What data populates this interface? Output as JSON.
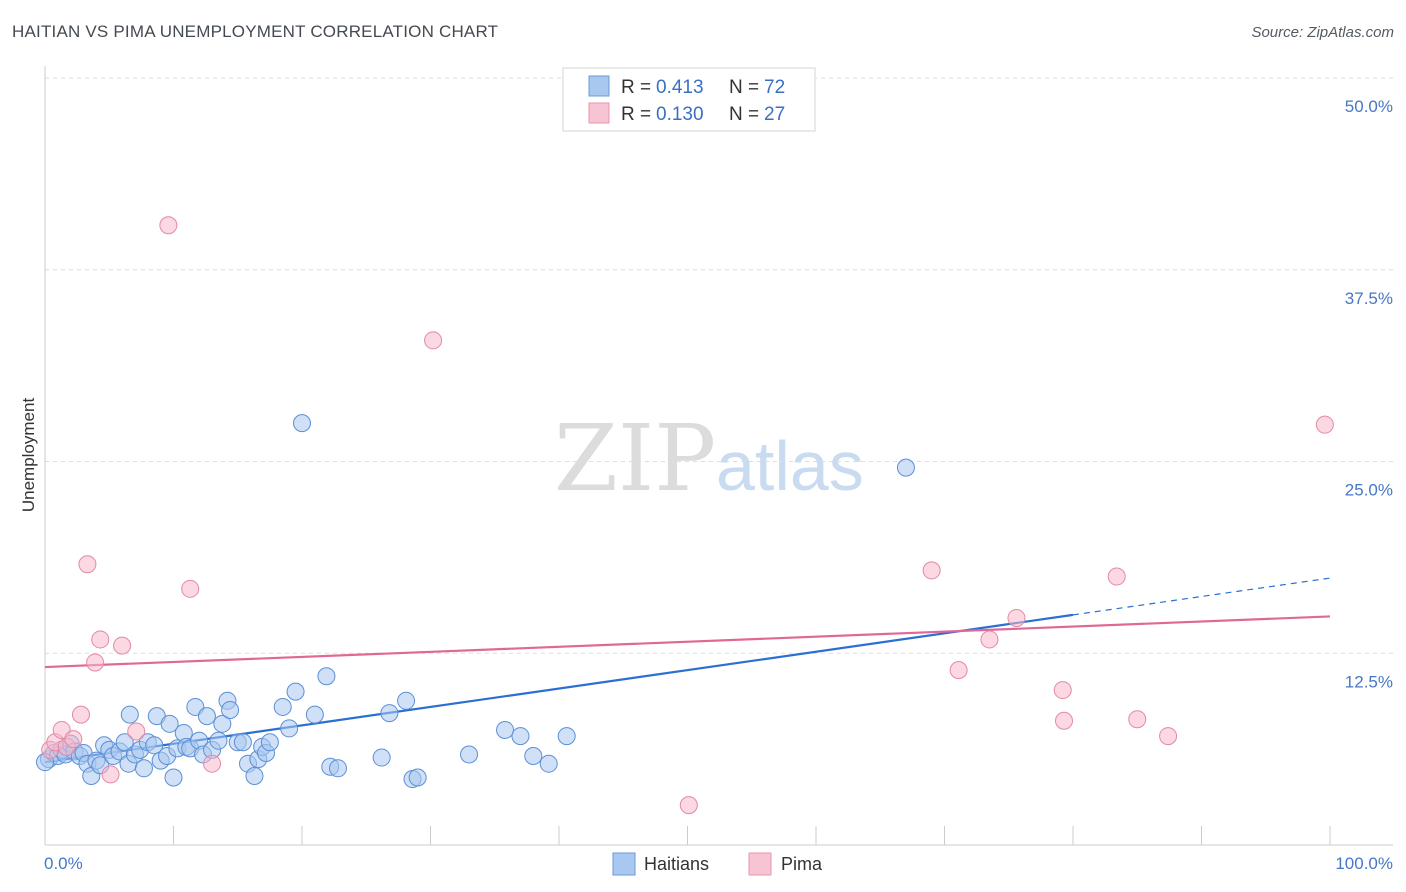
{
  "title": "HAITIAN VS PIMA UNEMPLOYMENT CORRELATION CHART",
  "source": "Source: ZipAtlas.com",
  "watermark": {
    "zip": "ZIP",
    "atlas": "atlas"
  },
  "legend": {
    "rows": [
      {
        "r_label": "R = ",
        "r_value": "0.413",
        "n_label": "N = ",
        "n_value": "72",
        "color": "#a9c8f0"
      },
      {
        "r_label": "R = ",
        "r_value": "0.130",
        "n_label": "N = ",
        "n_value": "27",
        "color": "#f7b8cb"
      }
    ]
  },
  "chart_data": {
    "type": "scatter",
    "title": "HAITIAN VS PIMA UNEMPLOYMENT CORRELATION CHART",
    "xlabel": "",
    "ylabel": "Unemployment",
    "xlim": [
      0,
      100
    ],
    "ylim": [
      0,
      50
    ],
    "x_tick_labels": [
      "0.0%",
      "100.0%"
    ],
    "y_ticks": [
      12.5,
      25.0,
      37.5,
      50.0
    ],
    "y_tick_labels": [
      "12.5%",
      "25.0%",
      "37.5%",
      "50.0%"
    ],
    "series": [
      {
        "name": "Haitians",
        "color": "#a9c8f0",
        "stroke": "#5b8fd6",
        "trend_color": "#2a6fd1",
        "trend": {
          "x0": 0,
          "y0": 5.4,
          "x1": 80,
          "y1": 15.0,
          "dash_to_x": 100,
          "dash_to_y": 17.4
        },
        "points": [
          [
            0.3,
            5.6
          ],
          [
            0.7,
            6.0
          ],
          [
            1.0,
            5.8
          ],
          [
            1.3,
            6.2
          ],
          [
            1.6,
            5.9
          ],
          [
            2.0,
            6.6
          ],
          [
            2.3,
            6.1
          ],
          [
            2.7,
            5.8
          ],
          [
            3.0,
            6.0
          ],
          [
            3.3,
            5.3
          ],
          [
            3.6,
            4.5
          ],
          [
            4.0,
            5.5
          ],
          [
            4.3,
            5.2
          ],
          [
            4.6,
            6.5
          ],
          [
            5.0,
            6.2
          ],
          [
            5.3,
            5.8
          ],
          [
            5.8,
            6.1
          ],
          [
            6.2,
            6.7
          ],
          [
            6.5,
            5.3
          ],
          [
            6.6,
            8.5
          ],
          [
            7.0,
            5.9
          ],
          [
            7.4,
            6.2
          ],
          [
            7.7,
            5.0
          ],
          [
            8.0,
            6.7
          ],
          [
            8.5,
            6.5
          ],
          [
            8.7,
            8.4
          ],
          [
            9.0,
            5.5
          ],
          [
            9.5,
            5.8
          ],
          [
            9.7,
            7.9
          ],
          [
            10.0,
            4.4
          ],
          [
            10.3,
            6.3
          ],
          [
            10.8,
            7.3
          ],
          [
            11.0,
            6.4
          ],
          [
            11.3,
            6.3
          ],
          [
            11.7,
            9.0
          ],
          [
            12.0,
            6.8
          ],
          [
            12.3,
            5.9
          ],
          [
            12.6,
            8.4
          ],
          [
            13.0,
            6.2
          ],
          [
            13.5,
            6.8
          ],
          [
            13.8,
            7.9
          ],
          [
            14.2,
            9.4
          ],
          [
            14.4,
            8.8
          ],
          [
            15.0,
            6.7
          ],
          [
            15.4,
            6.7
          ],
          [
            15.8,
            5.3
          ],
          [
            16.3,
            4.5
          ],
          [
            16.6,
            5.6
          ],
          [
            16.9,
            6.4
          ],
          [
            17.2,
            6.0
          ],
          [
            17.5,
            6.7
          ],
          [
            18.5,
            9.0
          ],
          [
            19.0,
            7.6
          ],
          [
            19.5,
            10.0
          ],
          [
            20.0,
            27.5
          ],
          [
            21.0,
            8.5
          ],
          [
            21.9,
            11.0
          ],
          [
            22.2,
            5.1
          ],
          [
            22.8,
            5.0
          ],
          [
            26.2,
            5.7
          ],
          [
            26.8,
            8.6
          ],
          [
            28.1,
            9.4
          ],
          [
            28.6,
            4.3
          ],
          [
            29.0,
            4.4
          ],
          [
            33.0,
            5.9
          ],
          [
            35.8,
            7.5
          ],
          [
            37.0,
            7.1
          ],
          [
            38.0,
            5.8
          ],
          [
            39.2,
            5.3
          ],
          [
            40.6,
            7.1
          ],
          [
            67.0,
            24.6
          ],
          [
            0.0,
            5.4
          ]
        ],
        "point_sizes": {
          "0.0,5.4": "large"
        }
      },
      {
        "name": "Pima",
        "color": "#f7b8cb",
        "stroke": "#e389a6",
        "trend_color": "#e06896",
        "trend": {
          "x0": 0,
          "y0": 11.6,
          "x1": 100,
          "y1": 14.9
        },
        "points": [
          [
            0.4,
            6.2
          ],
          [
            0.8,
            6.7
          ],
          [
            1.3,
            7.5
          ],
          [
            1.7,
            6.4
          ],
          [
            2.2,
            6.9
          ],
          [
            2.8,
            8.5
          ],
          [
            3.3,
            18.3
          ],
          [
            3.9,
            11.9
          ],
          [
            4.3,
            13.4
          ],
          [
            5.1,
            4.6
          ],
          [
            6.0,
            13.0
          ],
          [
            7.1,
            7.4
          ],
          [
            9.6,
            40.4
          ],
          [
            11.3,
            16.7
          ],
          [
            13.0,
            5.3
          ],
          [
            30.2,
            32.9
          ],
          [
            50.1,
            2.6
          ],
          [
            69.0,
            17.9
          ],
          [
            71.1,
            11.4
          ],
          [
            73.5,
            13.4
          ],
          [
            75.6,
            14.8
          ],
          [
            79.2,
            10.1
          ],
          [
            79.3,
            8.1
          ],
          [
            83.4,
            17.5
          ],
          [
            85.0,
            8.2
          ],
          [
            87.4,
            7.1
          ],
          [
            99.6,
            27.4
          ]
        ]
      }
    ]
  }
}
